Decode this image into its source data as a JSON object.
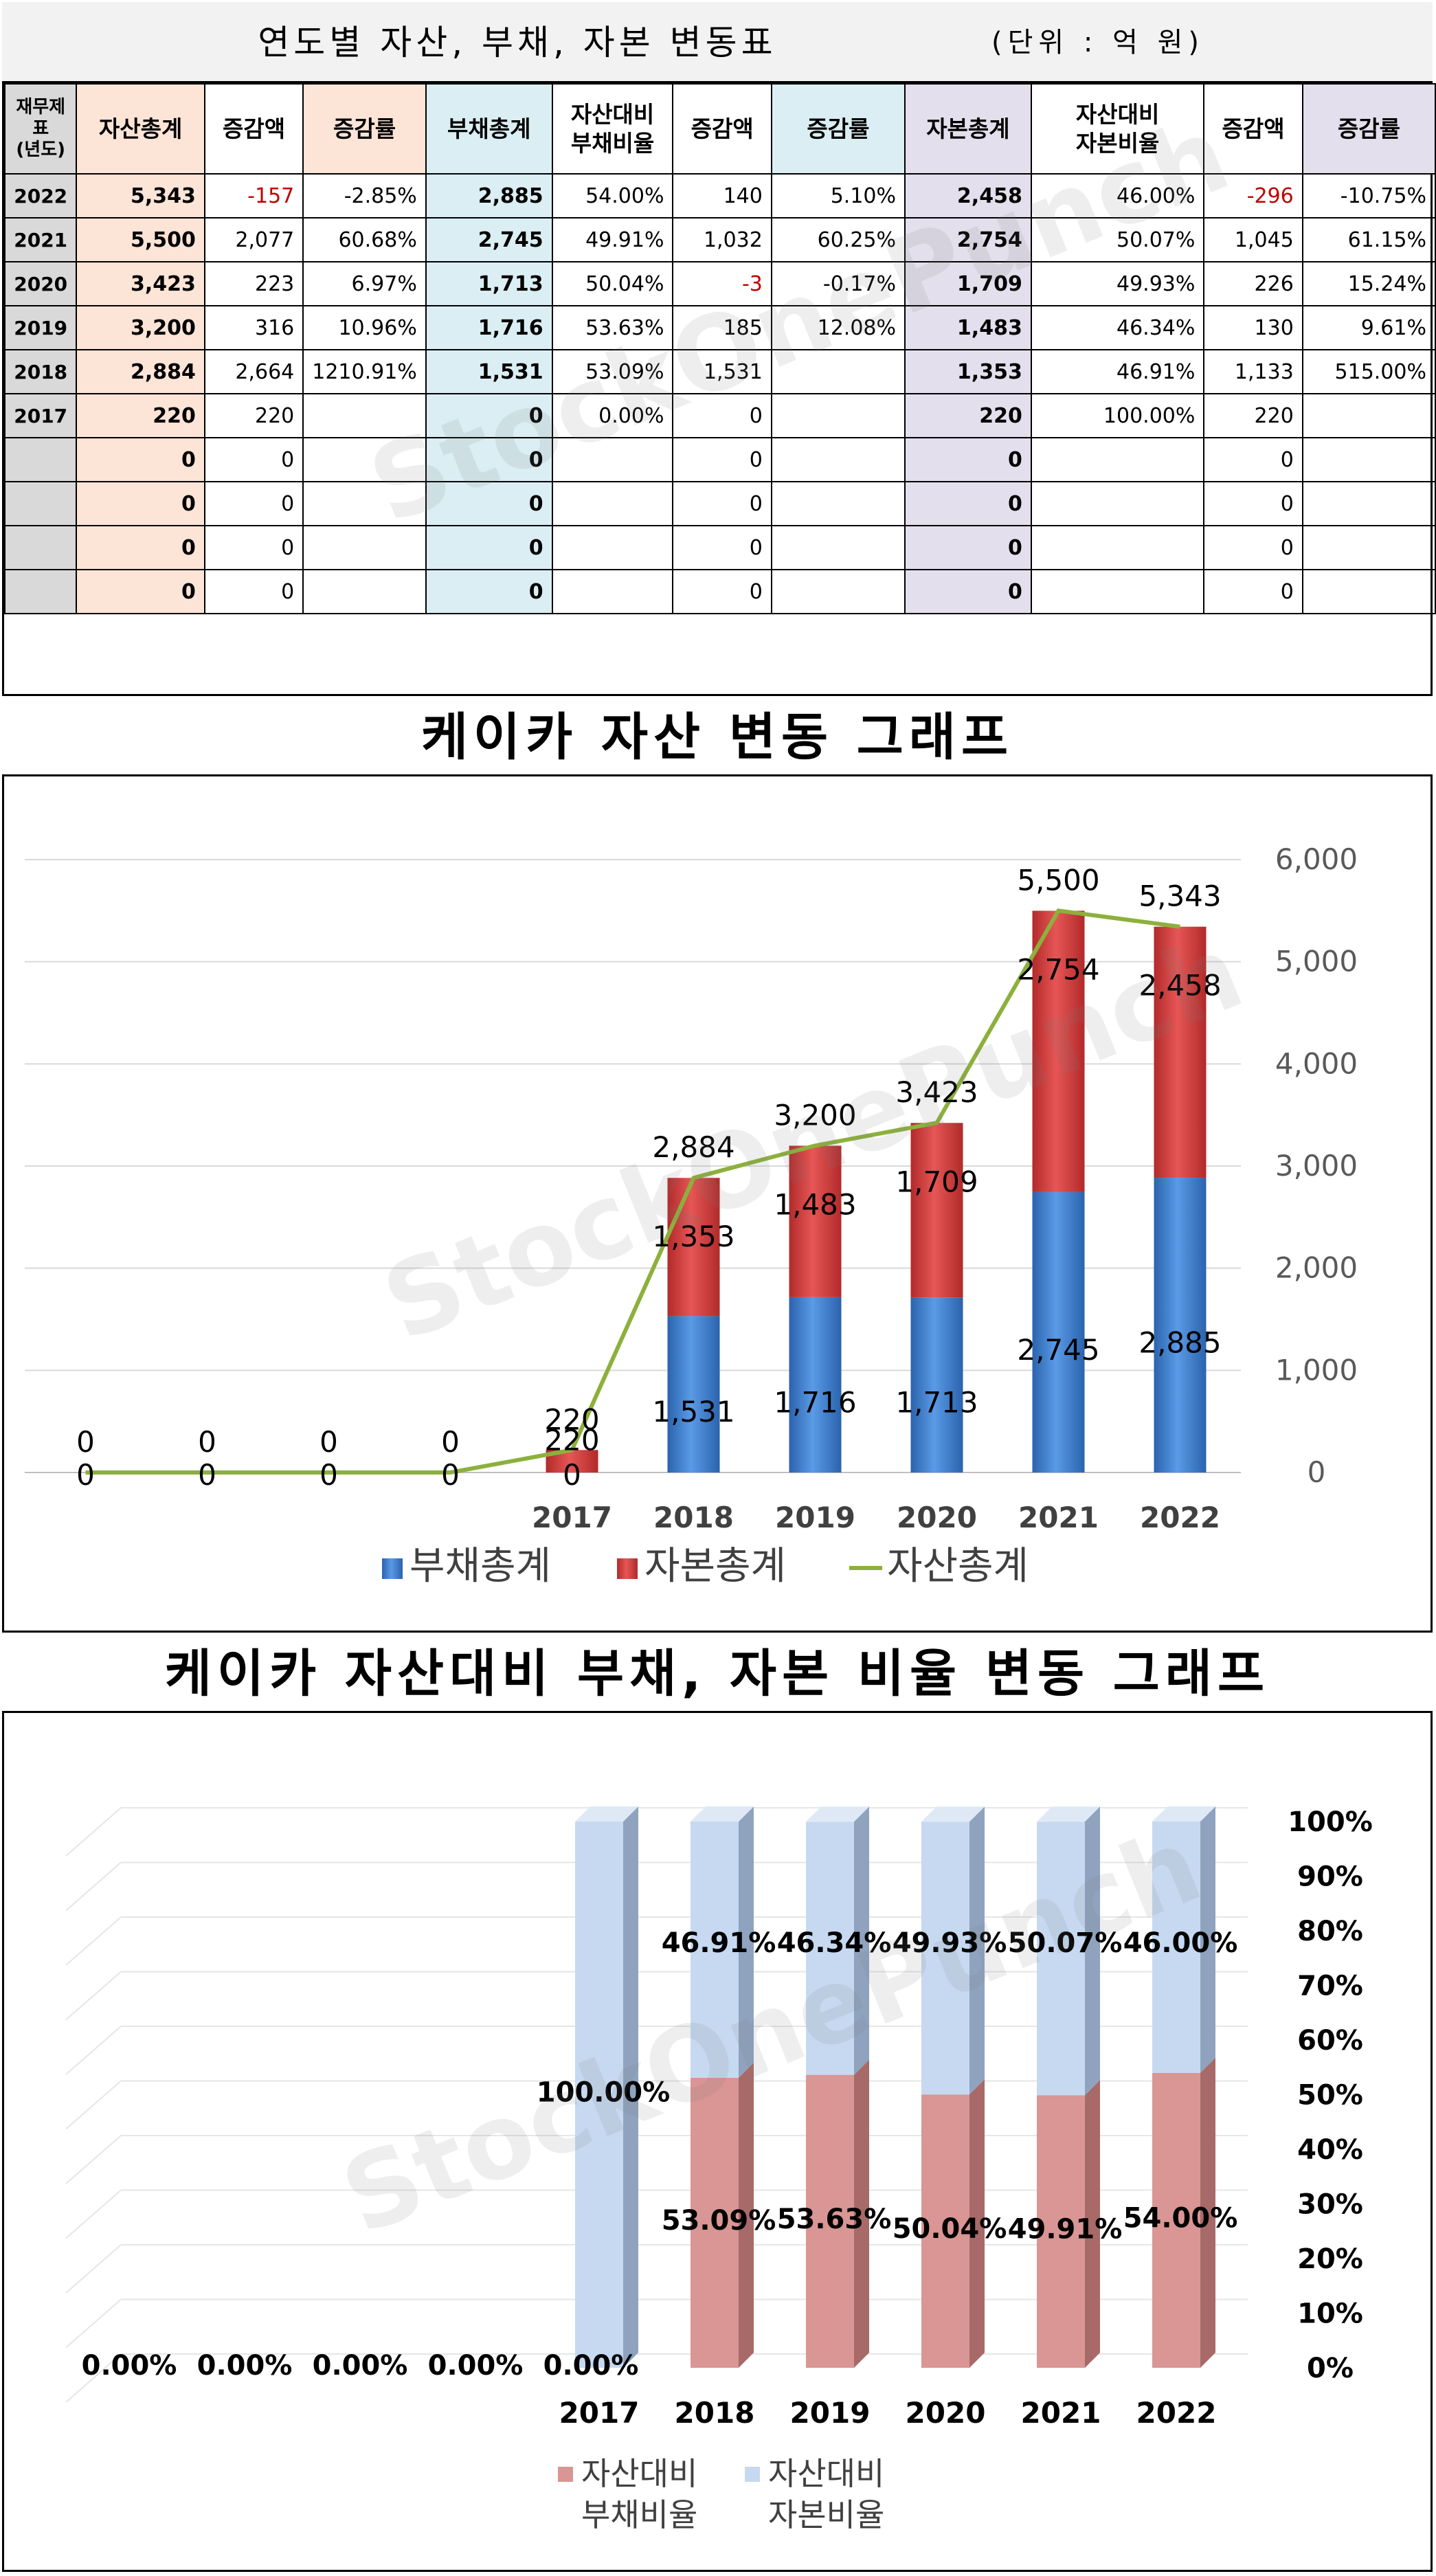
{
  "header": {
    "title": "연도별 자산, 부채, 자본 변동표",
    "unit": "(단위 : 억 원)"
  },
  "table": {
    "columns": [
      "재무제표\n(년도)",
      "자산총계",
      "증감액",
      "증감률",
      "부채총계",
      "자산대비\n부채비율",
      "증감액",
      "증감률",
      "자본총계",
      "자산대비\n자본비율",
      "증감액",
      "증감률"
    ],
    "rows": [
      {
        "year": "2022",
        "assets": "5,343",
        "assets_chg": "-157",
        "assets_rate": "-2.85%",
        "liab": "2,885",
        "liab_ratio": "54.00%",
        "liab_chg": "140",
        "liab_rate": "5.10%",
        "equity": "2,458",
        "equity_ratio": "46.00%",
        "equity_chg": "-296",
        "equity_rate": "-10.75%"
      },
      {
        "year": "2021",
        "assets": "5,500",
        "assets_chg": "2,077",
        "assets_rate": "60.68%",
        "liab": "2,745",
        "liab_ratio": "49.91%",
        "liab_chg": "1,032",
        "liab_rate": "60.25%",
        "equity": "2,754",
        "equity_ratio": "50.07%",
        "equity_chg": "1,045",
        "equity_rate": "61.15%"
      },
      {
        "year": "2020",
        "assets": "3,423",
        "assets_chg": "223",
        "assets_rate": "6.97%",
        "liab": "1,713",
        "liab_ratio": "50.04%",
        "liab_chg": "-3",
        "liab_rate": "-0.17%",
        "equity": "1,709",
        "equity_ratio": "49.93%",
        "equity_chg": "226",
        "equity_rate": "15.24%"
      },
      {
        "year": "2019",
        "assets": "3,200",
        "assets_chg": "316",
        "assets_rate": "10.96%",
        "liab": "1,716",
        "liab_ratio": "53.63%",
        "liab_chg": "185",
        "liab_rate": "12.08%",
        "equity": "1,483",
        "equity_ratio": "46.34%",
        "equity_chg": "130",
        "equity_rate": "9.61%"
      },
      {
        "year": "2018",
        "assets": "2,884",
        "assets_chg": "2,664",
        "assets_rate": "1210.91%",
        "liab": "1,531",
        "liab_ratio": "53.09%",
        "liab_chg": "1,531",
        "liab_rate": "",
        "equity": "1,353",
        "equity_ratio": "46.91%",
        "equity_chg": "1,133",
        "equity_rate": "515.00%"
      },
      {
        "year": "2017",
        "assets": "220",
        "assets_chg": "220",
        "assets_rate": "",
        "liab": "0",
        "liab_ratio": "0.00%",
        "liab_chg": "0",
        "liab_rate": "",
        "equity": "220",
        "equity_ratio": "100.00%",
        "equity_chg": "220",
        "equity_rate": ""
      },
      {
        "year": "",
        "assets": "0",
        "assets_chg": "0",
        "assets_rate": "",
        "liab": "0",
        "liab_ratio": "",
        "liab_chg": "0",
        "liab_rate": "",
        "equity": "0",
        "equity_ratio": "",
        "equity_chg": "0",
        "equity_rate": ""
      },
      {
        "year": "",
        "assets": "0",
        "assets_chg": "0",
        "assets_rate": "",
        "liab": "0",
        "liab_ratio": "",
        "liab_chg": "0",
        "liab_rate": "",
        "equity": "0",
        "equity_ratio": "",
        "equity_chg": "0",
        "equity_rate": ""
      },
      {
        "year": "",
        "assets": "0",
        "assets_chg": "0",
        "assets_rate": "",
        "liab": "0",
        "liab_ratio": "",
        "liab_chg": "0",
        "liab_rate": "",
        "equity": "0",
        "equity_ratio": "",
        "equity_chg": "0",
        "equity_rate": ""
      },
      {
        "year": "",
        "assets": "0",
        "assets_chg": "0",
        "assets_rate": "",
        "liab": "0",
        "liab_ratio": "",
        "liab_chg": "0",
        "liab_rate": "",
        "equity": "0",
        "equity_ratio": "",
        "equity_chg": "0",
        "equity_rate": ""
      }
    ]
  },
  "watermark": "StockOnePunch",
  "colors": {
    "liab": "#3b7fd4",
    "equity": "#d63a3a",
    "assets_line": "#8db03c",
    "liab_ratio": "#d99694",
    "equity_ratio": "#c6d9f1"
  },
  "chart_data": [
    {
      "type": "bar",
      "title": "케이카 자산 변동 그래프",
      "stacked": true,
      "categories": [
        "",
        "",
        "",
        "",
        "2017",
        "2018",
        "2019",
        "2020",
        "2021",
        "2022"
      ],
      "series": [
        {
          "name": "부채총계",
          "values": [
            0,
            0,
            0,
            0,
            0,
            1531,
            1716,
            1713,
            2745,
            2885
          ]
        },
        {
          "name": "자본총계",
          "values": [
            0,
            0,
            0,
            0,
            220,
            1353,
            1483,
            1709,
            2754,
            2458
          ]
        },
        {
          "name": "자산총계",
          "kind": "line",
          "values": [
            0,
            0,
            0,
            0,
            220,
            2884,
            3200,
            3423,
            5500,
            5343
          ]
        }
      ],
      "ylim": [
        0,
        6000
      ],
      "yticks": [
        "0",
        "1,000",
        "2,000",
        "3,000",
        "4,000",
        "5,000",
        "6,000"
      ],
      "y_axis_side": "right",
      "grid": true,
      "legend": "bottom"
    },
    {
      "type": "bar",
      "title": "케이카 자산대비 부채, 자본 비율 변동 그래프",
      "stacked": true,
      "percent": true,
      "categories": [
        "",
        "",
        "",
        "",
        "2017",
        "2018",
        "2019",
        "2020",
        "2021",
        "2022"
      ],
      "series": [
        {
          "name": "자산대비\n부채비율",
          "values": [
            0,
            0,
            0,
            0,
            0,
            53.09,
            53.63,
            50.04,
            49.91,
            54.0
          ]
        },
        {
          "name": "자산대비\n자본비율",
          "values": [
            0,
            0,
            0,
            0,
            100,
            46.91,
            46.34,
            49.93,
            50.07,
            46.0
          ]
        }
      ],
      "ylim": [
        0,
        100
      ],
      "yticks": [
        "0%",
        "10%",
        "20%",
        "30%",
        "40%",
        "50%",
        "60%",
        "70%",
        "80%",
        "90%",
        "100%"
      ],
      "y_axis_side": "right",
      "grid": true,
      "legend": "bottom"
    }
  ]
}
